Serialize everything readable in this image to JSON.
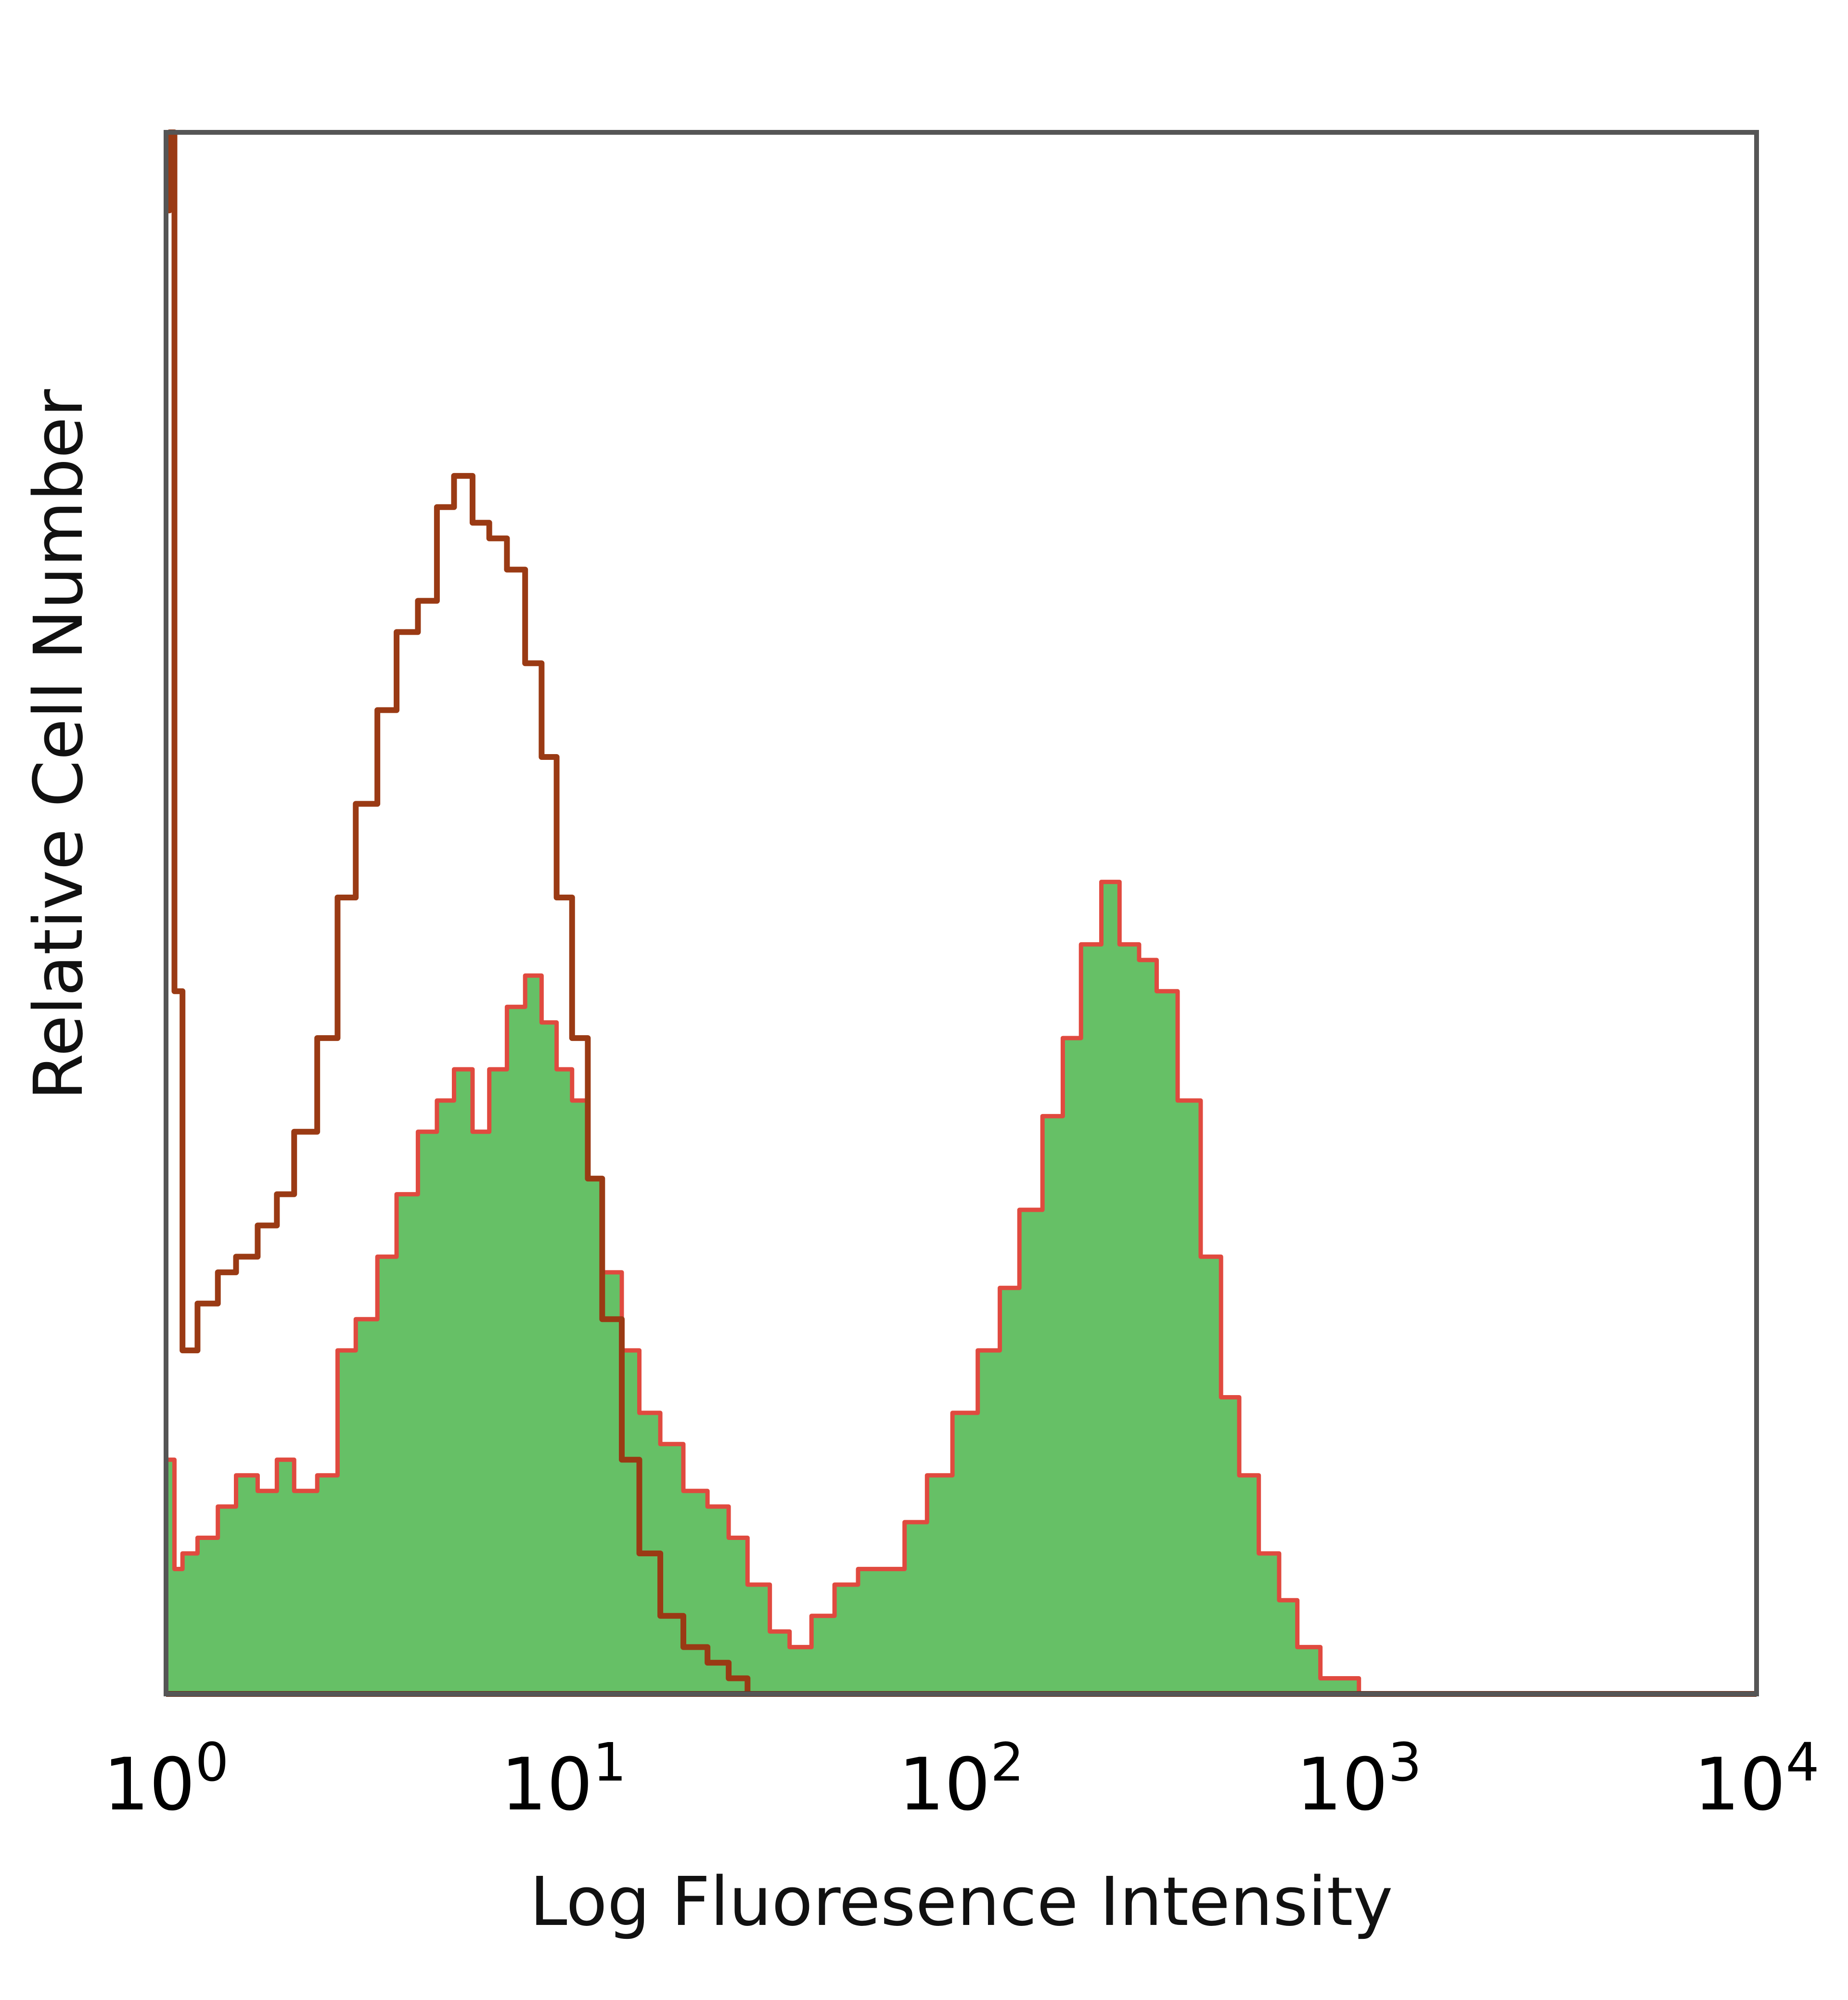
{
  "chart_data": {
    "type": "area",
    "title": "",
    "xlabel": "Log Fluoresence Intensity",
    "ylabel": "Relative Cell Number",
    "xscale": "log",
    "xlim": [
      1,
      10000
    ],
    "ylim": [
      0,
      100
    ],
    "grid": false,
    "legend": "none",
    "x_ticks": [
      {
        "base": "10",
        "exp": "0"
      },
      {
        "base": "10",
        "exp": "1"
      },
      {
        "base": "10",
        "exp": "2"
      },
      {
        "base": "10",
        "exp": "3"
      },
      {
        "base": "10",
        "exp": "4"
      }
    ],
    "x_tick_values": [
      1,
      10,
      100,
      1000,
      10000
    ],
    "series": [
      {
        "style": "filled",
        "fill_color": "#66c066",
        "line_color": "#e04a3f",
        "x": [
          1.0,
          1.05,
          1.1,
          1.2,
          1.35,
          1.5,
          1.7,
          1.9,
          2.1,
          2.4,
          2.7,
          3.0,
          3.4,
          3.8,
          4.3,
          4.8,
          5.3,
          5.9,
          6.5,
          7.2,
          8.0,
          8.8,
          9.6,
          10.5,
          11.5,
          12.5,
          14.0,
          15.5,
          17.5,
          20.0,
          23.0,
          26.0,
          29.0,
          33.0,
          37.0,
          42.0,
          48.0,
          55.0,
          63.0,
          72.0,
          82.0,
          95.0,
          110.0,
          125.0,
          140.0,
          160.0,
          180.0,
          200.0,
          225.0,
          250.0,
          280.0,
          310.0,
          350.0,
          400.0,
          450.0,
          500.0,
          560.0,
          630.0,
          700.0,
          800.0,
          1000.0
        ],
        "values": [
          15,
          8,
          9,
          10,
          12,
          14,
          13,
          15,
          13,
          14,
          22,
          24,
          28,
          32,
          36,
          38,
          40,
          36,
          40,
          44,
          46,
          43,
          40,
          38,
          33,
          27,
          22,
          18,
          16,
          13,
          12,
          10,
          7,
          4,
          3,
          5,
          7,
          8,
          8,
          11,
          14,
          18,
          22,
          26,
          31,
          37,
          42,
          48,
          52,
          48,
          47,
          45,
          38,
          28,
          19,
          14,
          9,
          6,
          3,
          1,
          0
        ]
      },
      {
        "style": "outline",
        "line_color": "#9a3a14",
        "x": [
          1.0,
          1.02,
          1.05,
          1.1,
          1.2,
          1.35,
          1.5,
          1.7,
          1.9,
          2.1,
          2.4,
          2.7,
          3.0,
          3.4,
          3.8,
          4.3,
          4.8,
          5.3,
          5.9,
          6.5,
          7.2,
          8.0,
          8.8,
          9.6,
          10.5,
          11.5,
          12.5,
          14.0,
          15.5,
          17.5,
          20.0,
          23.0,
          26.0,
          29.0,
          33.0
        ],
        "values": [
          95,
          100,
          45,
          22,
          25,
          27,
          28,
          30,
          32,
          36,
          42,
          51,
          57,
          63,
          68,
          70,
          76,
          78,
          75,
          74,
          72,
          66,
          60,
          51,
          42,
          33,
          24,
          15,
          9,
          5,
          3,
          2,
          1,
          0,
          0
        ]
      }
    ]
  }
}
